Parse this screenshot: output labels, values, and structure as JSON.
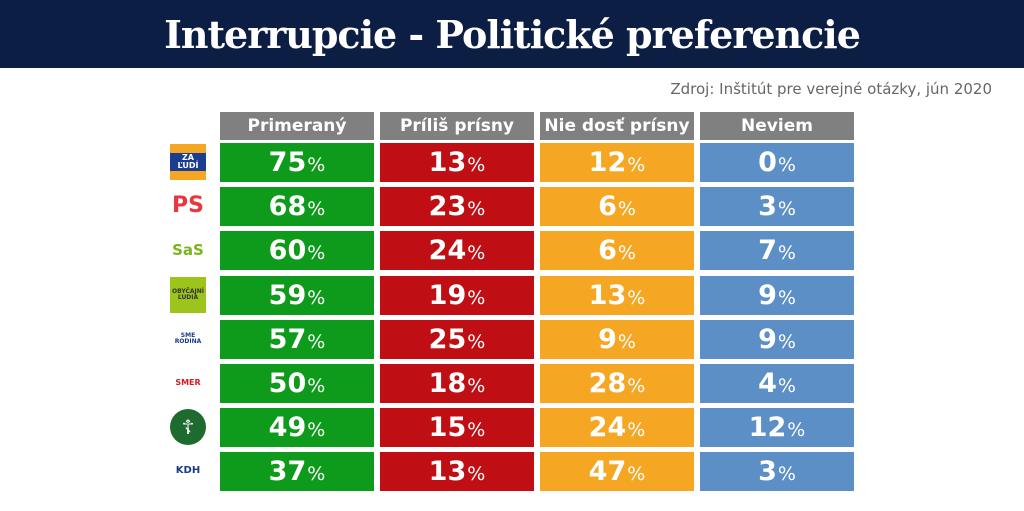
{
  "title": "Interrupcie - Politické preferencie",
  "source": "Zdroj: Inštitút pre verejné otázky, jún 2020",
  "chart_data": {
    "type": "table",
    "columns": [
      "Primeraný",
      "Príliš prísny",
      "Nie dosť prísny",
      "Neviem"
    ],
    "column_colors": [
      "#0e9a1a",
      "#c00f14",
      "#f5a623",
      "#5b8fc6"
    ],
    "unit": "%",
    "rows": [
      {
        "logo": "ZA ĽUDÍ",
        "values": [
          75,
          13,
          12,
          0
        ]
      },
      {
        "logo": "PS",
        "values": [
          68,
          23,
          6,
          3
        ]
      },
      {
        "logo": "SaS",
        "values": [
          60,
          24,
          6,
          7
        ]
      },
      {
        "logo": "OBYČAJNÍ ĽUDIA",
        "values": [
          59,
          19,
          13,
          9
        ]
      },
      {
        "logo": "SME RODINA",
        "values": [
          57,
          25,
          9,
          9
        ]
      },
      {
        "logo": "SMER",
        "values": [
          50,
          18,
          28,
          4
        ]
      },
      {
        "logo": "ĽSNS",
        "values": [
          49,
          15,
          24,
          12
        ]
      },
      {
        "logo": "KDH",
        "values": [
          37,
          13,
          47,
          3
        ]
      }
    ]
  }
}
